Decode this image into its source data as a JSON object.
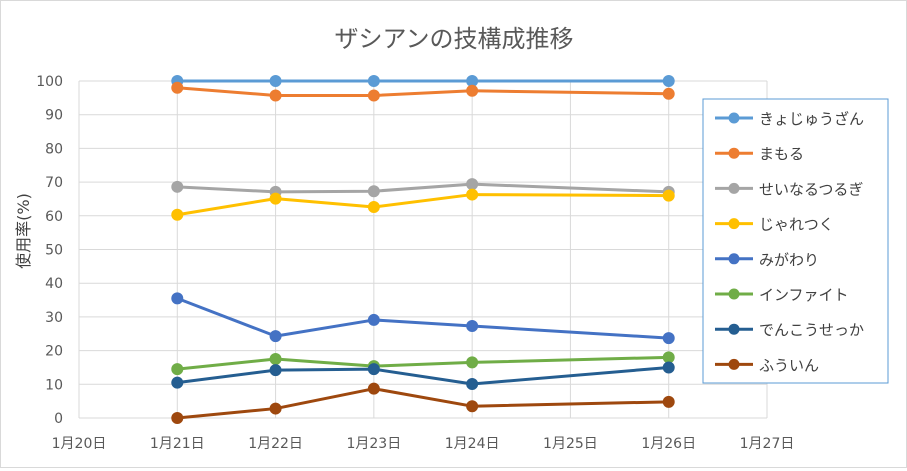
{
  "chart_data": {
    "type": "line",
    "title": "ザシアンの技構成推移",
    "ylabel": "使用率(%)",
    "xlabel": "",
    "ylim": [
      0,
      100
    ],
    "yticks": [
      0,
      10,
      20,
      30,
      40,
      50,
      60,
      70,
      80,
      90,
      100
    ],
    "xticks": [
      "1月20日",
      "1月21日",
      "1月22日",
      "1月23日",
      "1月24日",
      "1月25日",
      "1月26日",
      "1月27日"
    ],
    "x": [
      "1月21日",
      "1月22日",
      "1月23日",
      "1月24日",
      "1月26日"
    ],
    "grid": true,
    "legend_position": "right",
    "series": [
      {
        "name": "きょじゅうざん",
        "color": "#5b9bd5",
        "values": [
          100,
          100,
          100,
          100,
          100
        ]
      },
      {
        "name": "まもる",
        "color": "#ed7d31",
        "values": [
          98,
          95.7,
          95.7,
          97.1,
          96.2
        ]
      },
      {
        "name": "せいなるつるぎ",
        "color": "#a5a5a5",
        "values": [
          68.6,
          67.1,
          67.3,
          69.4,
          67.1
        ]
      },
      {
        "name": "じゃれつく",
        "color": "#ffc000",
        "values": [
          60.3,
          65.1,
          62.6,
          66.3,
          66
        ]
      },
      {
        "name": "みがわり",
        "color": "#4472c4",
        "values": [
          35.5,
          24.3,
          29.1,
          27.3,
          23.7
        ]
      },
      {
        "name": "インファイト",
        "color": "#70ad47",
        "values": [
          14.5,
          17.5,
          15.4,
          16.5,
          18
        ]
      },
      {
        "name": "でんこうせっか",
        "color": "#255e91",
        "values": [
          10.5,
          14.2,
          14.5,
          10.1,
          15
        ]
      },
      {
        "name": "ふういん",
        "color": "#9e480e",
        "values": [
          0,
          2.8,
          8.7,
          3.5,
          4.8
        ]
      }
    ]
  }
}
